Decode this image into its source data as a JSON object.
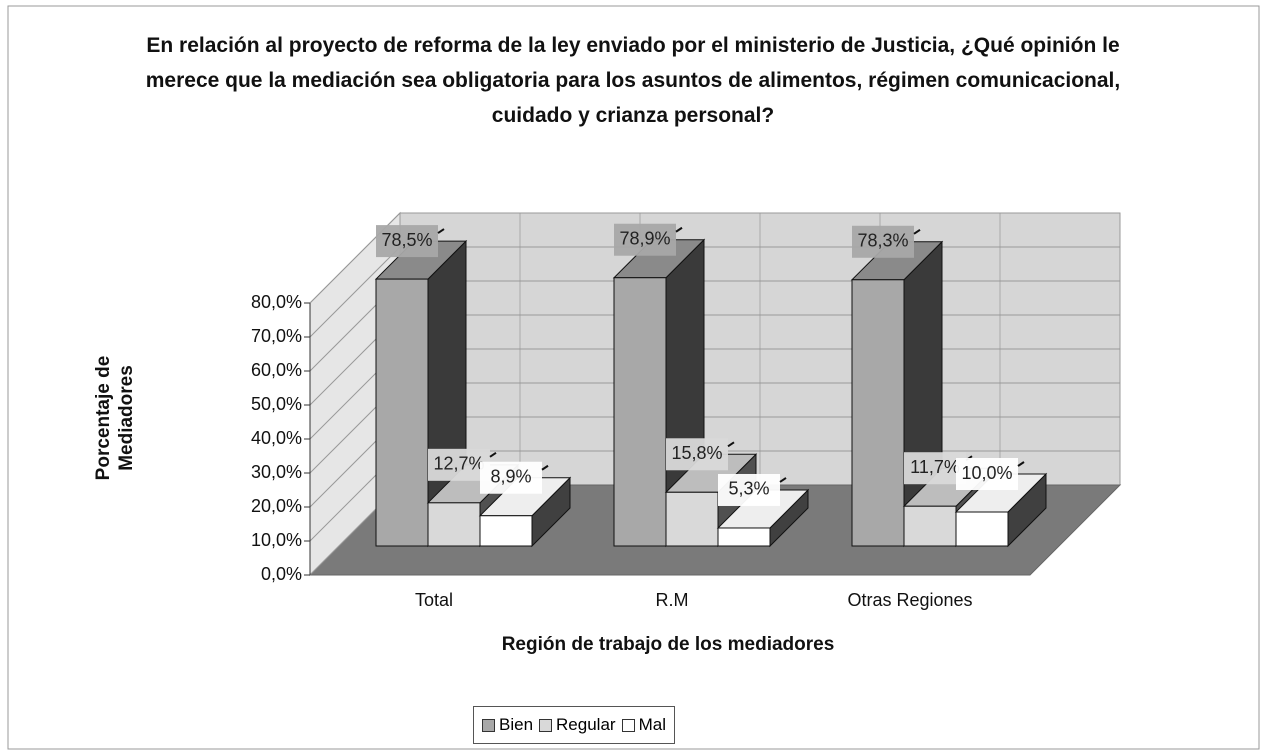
{
  "chart_data": {
    "type": "bar3d",
    "title": "En relación al proyecto de reforma de la ley enviado por el ministerio de Justicia, ¿Qué opinión le merece que la mediación sea obligatoria para los asuntos de alimentos, régimen comunicacional, cuidado y crianza personal?",
    "x_label": "Región de trabajo de los mediadores",
    "y_label": "Porcentaje de Mediadores",
    "categories": [
      "Total",
      "R.M",
      "Otras Regiones"
    ],
    "series": [
      {
        "name": "Bien",
        "color": "#a8a8a8",
        "values": [
          78.5,
          78.9,
          78.3
        ],
        "value_labels": [
          "78,5%",
          "78,9%",
          "78,3%"
        ]
      },
      {
        "name": "Regular",
        "color": "#d9d9d9",
        "values": [
          12.7,
          15.8,
          11.7
        ],
        "value_labels": [
          "12,7%",
          "15,8%",
          "11,7%"
        ]
      },
      {
        "name": "Mal",
        "color": "#ffffff",
        "values": [
          8.9,
          5.3,
          10.0
        ],
        "value_labels": [
          "8,9%",
          "5,3%",
          "10,0%"
        ]
      }
    ],
    "ylim": [
      0,
      80
    ],
    "yticks": [
      {
        "value": 0,
        "label": "0,0%"
      },
      {
        "value": 10,
        "label": "10,0%"
      },
      {
        "value": 20,
        "label": "20,0%"
      },
      {
        "value": 30,
        "label": "30,0%"
      },
      {
        "value": 40,
        "label": "40,0%"
      },
      {
        "value": 50,
        "label": "50,0%"
      },
      {
        "value": 60,
        "label": "60,0%"
      },
      {
        "value": 70,
        "label": "70,0%"
      },
      {
        "value": 80,
        "label": "80,0%"
      }
    ],
    "grid": true,
    "legend": "bottom"
  }
}
